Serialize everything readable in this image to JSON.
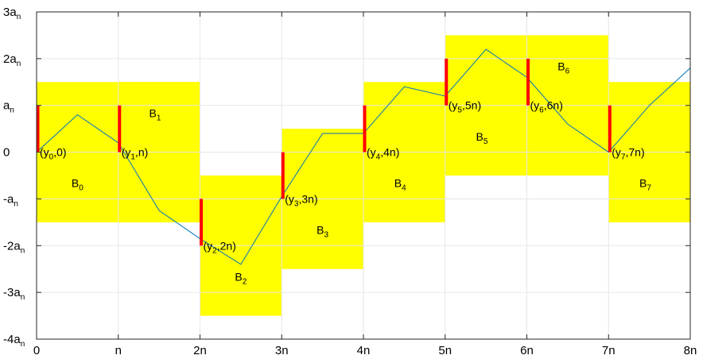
{
  "chart_data": {
    "type": "line",
    "title": "",
    "xlabel": "",
    "ylabel": "",
    "xlim": [
      0,
      8
    ],
    "ylim": [
      -4,
      3
    ],
    "grid": true,
    "colors": {
      "box_fill": "#ffff00",
      "line": "#0072bd",
      "marker": "#ff0000",
      "grid": "#e6e6e6",
      "axes": "#262626"
    },
    "x_ticks": [
      {
        "value": 0,
        "main": "0",
        "sub": ""
      },
      {
        "value": 1,
        "main": "n",
        "sub": ""
      },
      {
        "value": 2,
        "main": "2n",
        "sub": ""
      },
      {
        "value": 3,
        "main": "3n",
        "sub": ""
      },
      {
        "value": 4,
        "main": "4n",
        "sub": ""
      },
      {
        "value": 5,
        "main": "5n",
        "sub": ""
      },
      {
        "value": 6,
        "main": "6n",
        "sub": ""
      },
      {
        "value": 7,
        "main": "7n",
        "sub": ""
      },
      {
        "value": 8,
        "main": "8n",
        "sub": ""
      }
    ],
    "y_ticks": [
      {
        "value": 3,
        "main": "3a",
        "sub": "n"
      },
      {
        "value": 2,
        "main": "2a",
        "sub": "n"
      },
      {
        "value": 1,
        "main": "a",
        "sub": "n"
      },
      {
        "value": 0,
        "main": "0",
        "sub": ""
      },
      {
        "value": -1,
        "main": "-a",
        "sub": "n"
      },
      {
        "value": -2,
        "main": "-2a",
        "sub": "n"
      },
      {
        "value": -3,
        "main": "-3a",
        "sub": "n"
      },
      {
        "value": -4,
        "main": "-4a",
        "sub": "n"
      }
    ],
    "boxes": [
      {
        "main": "B",
        "sub": "0",
        "x": [
          0,
          2
        ],
        "y": [
          -1.5,
          1.5
        ],
        "label_at": [
          0.5,
          -0.75
        ]
      },
      {
        "main": "B",
        "sub": "1",
        "x": [
          1,
          2
        ],
        "y": [
          -1.5,
          1.5
        ],
        "label_at": [
          1.45,
          0.75
        ]
      },
      {
        "main": "B",
        "sub": "2",
        "x": [
          2,
          3
        ],
        "y": [
          -3.5,
          -0.5
        ],
        "label_at": [
          2.5,
          -2.75
        ]
      },
      {
        "main": "B",
        "sub": "3",
        "x": [
          3,
          4
        ],
        "y": [
          -2.5,
          0.5
        ],
        "label_at": [
          3.5,
          -1.75
        ]
      },
      {
        "main": "B",
        "sub": "4",
        "x": [
          4,
          5
        ],
        "y": [
          -1.5,
          1.5
        ],
        "label_at": [
          4.45,
          -0.75
        ]
      },
      {
        "main": "B",
        "sub": "5",
        "x": [
          5,
          7
        ],
        "y": [
          -0.5,
          2.5
        ],
        "label_at": [
          5.45,
          0.25
        ]
      },
      {
        "main": "B",
        "sub": "6",
        "x": [
          6,
          7
        ],
        "y": [
          -0.5,
          2.5
        ],
        "label_at": [
          6.45,
          1.75
        ]
      },
      {
        "main": "B",
        "sub": "7",
        "x": [
          7,
          8
        ],
        "y": [
          -1.5,
          1.5
        ],
        "label_at": [
          7.45,
          -0.75
        ]
      }
    ],
    "series": [
      {
        "x": [
          0,
          0.5,
          1,
          1.5,
          2,
          2.5,
          3,
          3.5,
          4,
          4.5,
          5,
          5.5,
          6,
          6.5,
          7,
          7.5,
          8
        ],
        "y": [
          0,
          0.8,
          0.2,
          -1.25,
          -1.85,
          -2.4,
          -0.95,
          0.4,
          0.4,
          1.4,
          1.2,
          2.2,
          1.6,
          0.6,
          0,
          1,
          1.8
        ]
      }
    ],
    "markers": [
      {
        "x": 0,
        "y": [
          0,
          1
        ],
        "label_main": "(y",
        "label_sub": "0",
        "label_tail": ",0)"
      },
      {
        "x": 1,
        "y": [
          0,
          1
        ],
        "label_main": "(y",
        "label_sub": "1",
        "label_tail": ",n)"
      },
      {
        "x": 2,
        "y": [
          -2,
          -1
        ],
        "label_main": "(y",
        "label_sub": "2",
        "label_tail": ",2n)"
      },
      {
        "x": 3,
        "y": [
          -1,
          0
        ],
        "label_main": "(y",
        "label_sub": "3",
        "label_tail": ",3n)"
      },
      {
        "x": 4,
        "y": [
          0,
          1
        ],
        "label_main": "(y",
        "label_sub": "4",
        "label_tail": ",4n)"
      },
      {
        "x": 5,
        "y": [
          1,
          2
        ],
        "label_main": "(y",
        "label_sub": "5",
        "label_tail": ",5n)"
      },
      {
        "x": 6,
        "y": [
          1,
          2
        ],
        "label_main": "(y",
        "label_sub": "6",
        "label_tail": ",6n)"
      },
      {
        "x": 7,
        "y": [
          0,
          1
        ],
        "label_main": "(y",
        "label_sub": "7",
        "label_tail": ",7n)"
      }
    ]
  }
}
